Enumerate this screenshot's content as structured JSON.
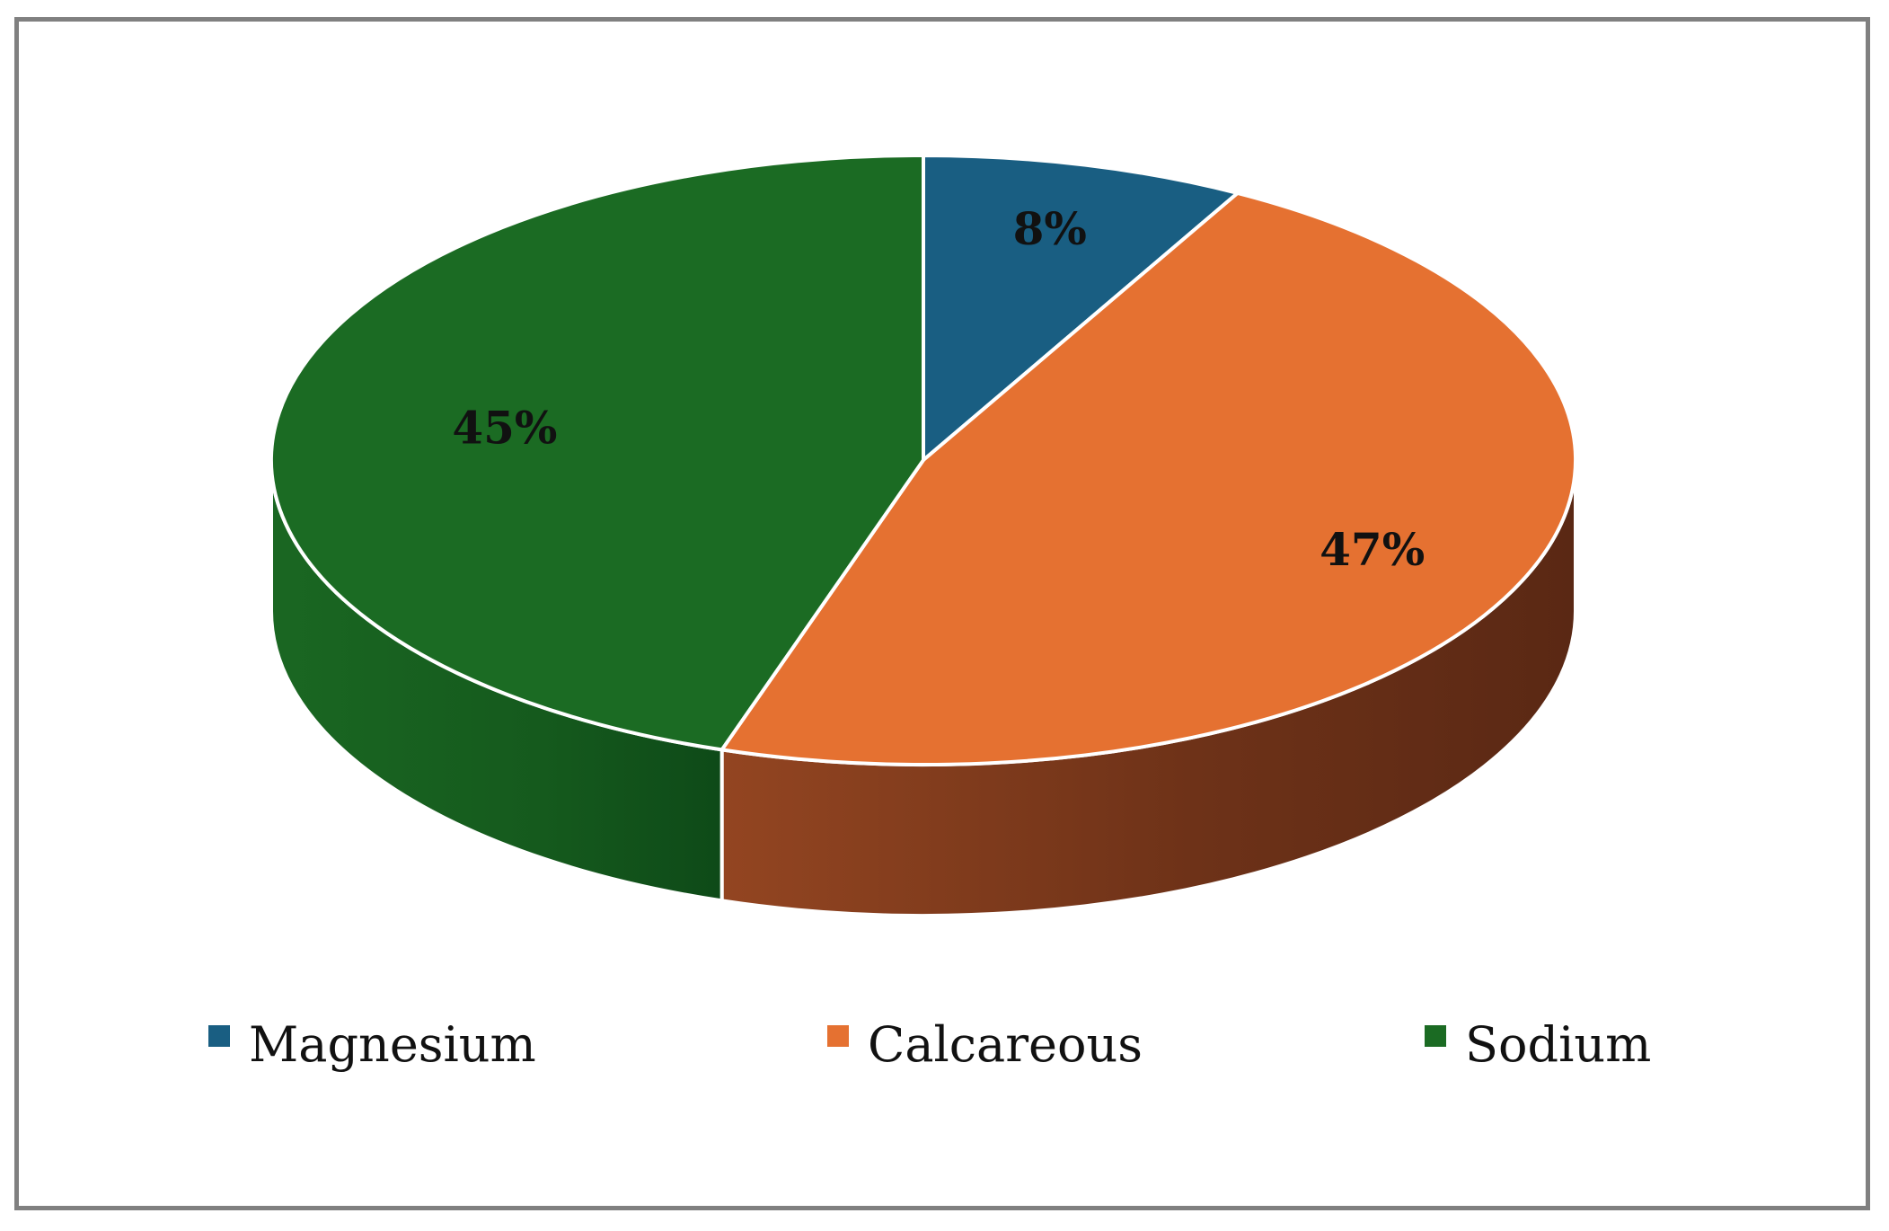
{
  "chart_data": {
    "type": "pie",
    "title": "",
    "categories": [
      "Magnesium",
      "Calcareous",
      "Sodium"
    ],
    "values": [
      8,
      47,
      45
    ],
    "unit": "%",
    "data_labels": [
      "8%",
      "47%",
      "45%"
    ],
    "colors": {
      "Magnesium": "#195E82",
      "Calcareous": "#E57131",
      "Sodium": "#1B6B23"
    },
    "style": "3d-pie",
    "legend_position": "bottom"
  }
}
